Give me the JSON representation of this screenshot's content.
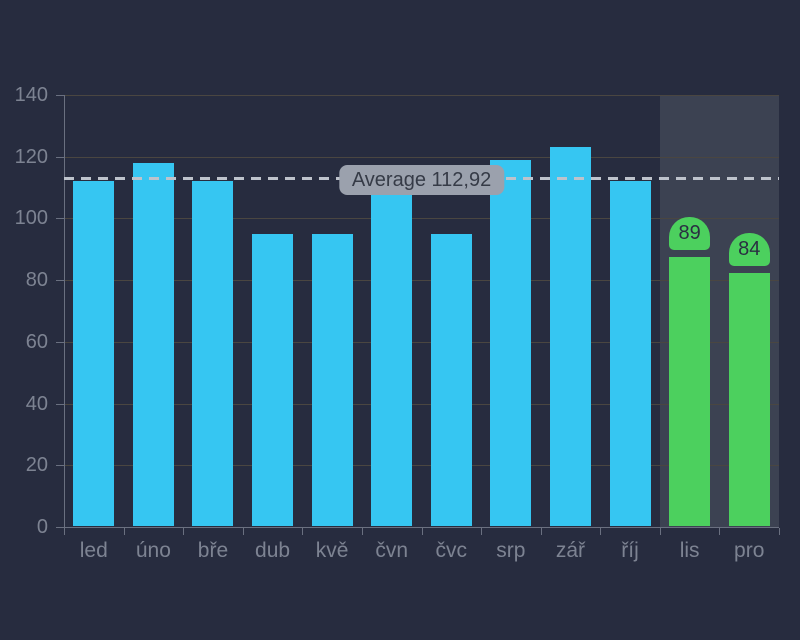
{
  "chart_data": {
    "type": "bar",
    "title": "",
    "xlabel": "",
    "ylabel": "",
    "categories": [
      "led",
      "úno",
      "bře",
      "dub",
      "kvě",
      "čvn",
      "čvc",
      "srp",
      "zář",
      "říj",
      "lis",
      "pro"
    ],
    "series": [
      {
        "name": "months-cyan",
        "color": "#36C6F2",
        "values": [
          112,
          118,
          112,
          95,
          95,
          108,
          95,
          119,
          123,
          112,
          null,
          null
        ],
        "data_labels": false
      },
      {
        "name": "months-green",
        "color": "#4CD05E",
        "values": [
          null,
          null,
          null,
          null,
          null,
          null,
          null,
          null,
          null,
          null,
          89,
          84
        ],
        "data_labels": true
      }
    ],
    "ylim": [
      0,
      140
    ],
    "yticks": [
      0,
      20,
      40,
      60,
      80,
      100,
      120,
      140
    ],
    "grid": "horizontal",
    "legend": "none",
    "annotation": {
      "label": "Average 112,92",
      "value": 112.92,
      "line_style": "dashed"
    },
    "highlight_band": {
      "from_category": "lis",
      "to_category": "pro"
    }
  },
  "colors": {
    "background": "#272C3F",
    "band": "#3C4252",
    "gridline": "#4A4641",
    "axis": "#6A7080",
    "axis_text": "#7D8392",
    "bar_cyan": "#36C6F2",
    "bar_green": "#4CD05E",
    "bar_label_text": "#2A2F42",
    "dashed_line": "#BEC3CC",
    "annotation_bg": "#9BA1AD",
    "annotation_text": "#363B47"
  }
}
